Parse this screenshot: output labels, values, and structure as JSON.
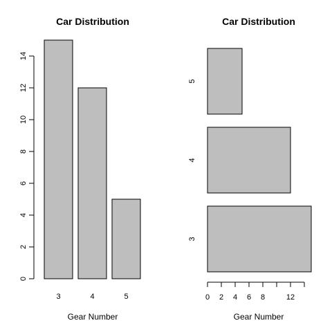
{
  "chart_data": [
    {
      "type": "bar",
      "orientation": "vertical",
      "title": "Car Distribution",
      "xlabel": "Gear Number",
      "ylabel": "",
      "categories": [
        "3",
        "4",
        "5"
      ],
      "values": [
        15,
        12,
        5
      ],
      "ylim": [
        0,
        15
      ],
      "yticks": [
        0,
        2,
        4,
        6,
        8,
        10,
        12,
        14
      ],
      "bar_color": "#bebebe",
      "grid": false
    },
    {
      "type": "bar",
      "orientation": "horizontal",
      "title": "Car Distribution",
      "xlabel": "Gear Number",
      "ylabel": "",
      "categories": [
        "3",
        "4",
        "5"
      ],
      "values": [
        15,
        12,
        5
      ],
      "xlim": [
        0,
        15
      ],
      "xticks": [
        0,
        2,
        4,
        6,
        8,
        12
      ],
      "bar_color": "#bebebe",
      "grid": false
    }
  ]
}
